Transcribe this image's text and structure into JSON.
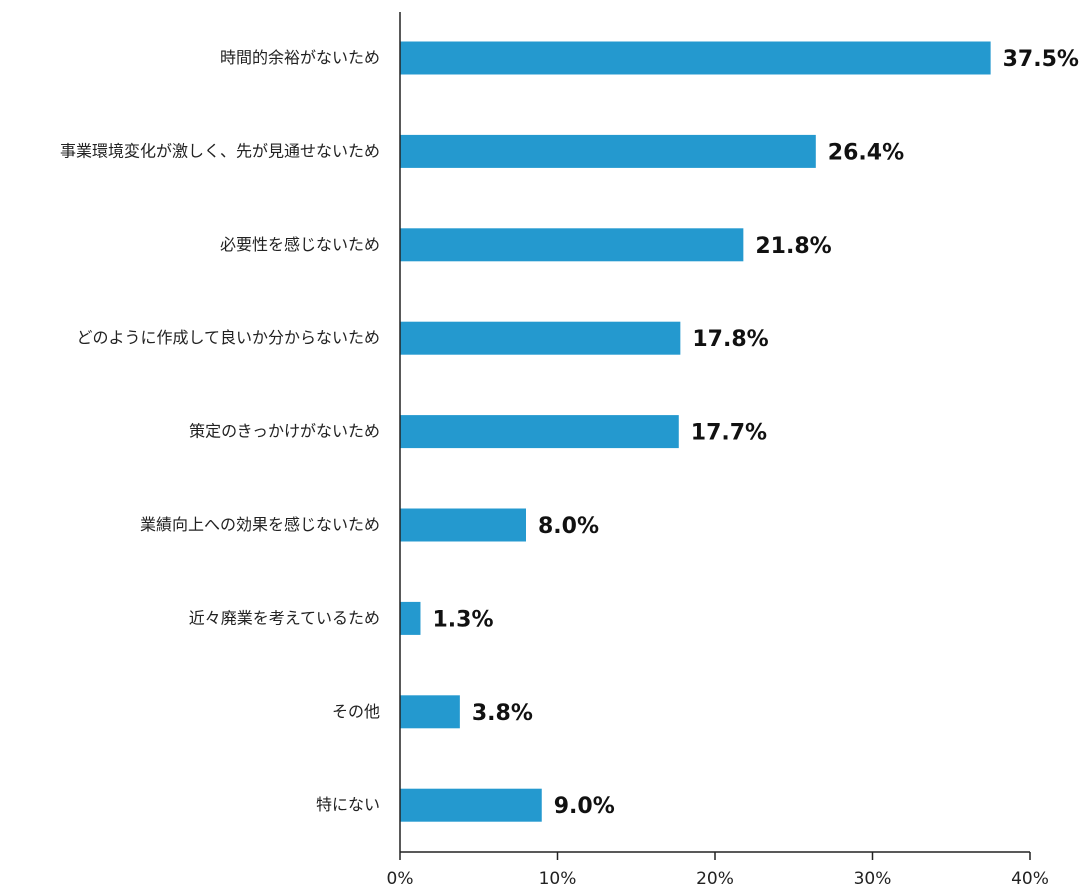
{
  "chart_data": {
    "type": "bar",
    "orientation": "horizontal",
    "categories": [
      "時間的余裕がないため",
      "事業環境変化が激しく、先が見通せないため",
      "必要性を感じないため",
      "どのように作成して良いか分からないため",
      "策定のきっかけがないため",
      "業績向上への効果を感じないため",
      "近々廃業を考えているため",
      "その他",
      "特にない"
    ],
    "values": [
      37.5,
      26.4,
      21.8,
      17.8,
      17.7,
      8.0,
      1.3,
      3.8,
      9.0
    ],
    "value_labels": [
      "37.5%",
      "26.4%",
      "21.8%",
      "17.8%",
      "17.7%",
      "8.0%",
      "1.3%",
      "3.8%",
      "9.0%"
    ],
    "xlim": [
      0,
      40
    ],
    "xticks": [
      0,
      10,
      20,
      30,
      40
    ],
    "xtick_labels": [
      "0%",
      "10%",
      "20%",
      "30%",
      "40%"
    ],
    "grid": false,
    "bar_color": "#2499cf"
  }
}
